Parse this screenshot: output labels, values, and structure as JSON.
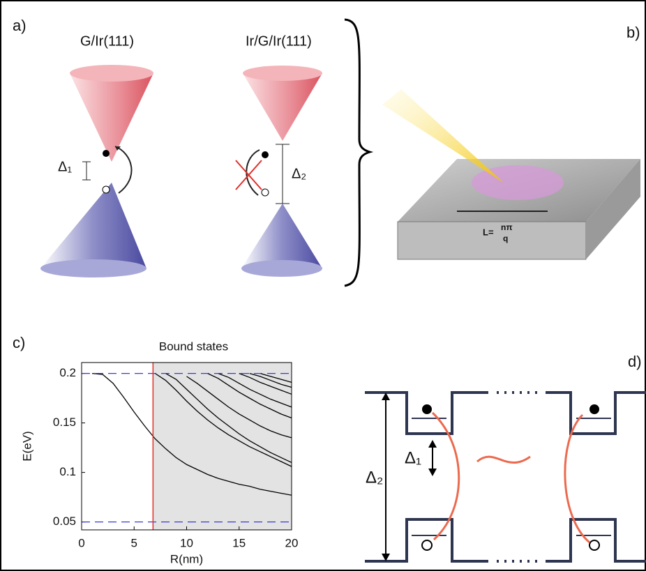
{
  "panels": {
    "a": {
      "label": "a)",
      "left_title": "G/Ir(111)",
      "right_title": "Ir/G/Ir(111)",
      "gap_small": "Δ₁",
      "gap_large": "Δ₂"
    },
    "b": {
      "label": "b)",
      "length_lhs": "L=",
      "length_num": "nπ",
      "length_den": "q"
    },
    "c": {
      "label": "c)"
    },
    "d": {
      "label": "d)",
      "gap_large": "Δ₂",
      "gap_small": "Δ₁"
    }
  },
  "chart_data": {
    "type": "line",
    "title": "Bound states",
    "x_label": "R(nm)",
    "y_label": "E(eV)",
    "x": [
      0,
      1,
      2,
      3,
      4,
      5,
      6,
      7,
      8,
      9,
      10,
      11,
      12,
      13,
      14,
      15,
      16,
      17,
      18,
      19,
      20
    ],
    "series": [
      {
        "color": "#000000",
        "values": [
          null,
          0.2,
          0.199,
          0.19,
          0.176,
          0.161,
          0.147,
          0.134,
          0.124,
          0.115,
          0.108,
          0.103,
          0.098,
          0.094,
          0.091,
          0.088,
          0.086,
          0.083,
          0.081,
          0.079,
          0.077
        ]
      },
      {
        "color": "#000000",
        "values": [
          null,
          null,
          null,
          null,
          null,
          null,
          null,
          0.2,
          0.193,
          0.183,
          0.172,
          0.162,
          0.153,
          0.145,
          0.138,
          0.132,
          0.126,
          0.121,
          0.116,
          0.111,
          0.106
        ]
      },
      {
        "color": "#000000",
        "values": [
          null,
          null,
          null,
          null,
          null,
          null,
          null,
          null,
          0.2,
          0.194,
          0.184,
          0.174,
          0.164,
          0.155,
          0.147,
          0.139,
          0.132,
          0.126,
          0.12,
          0.115,
          0.11
        ]
      },
      {
        "color": "#000000",
        "values": [
          null,
          null,
          null,
          null,
          null,
          null,
          null,
          null,
          null,
          null,
          0.197,
          0.19,
          0.182,
          0.174,
          0.166,
          0.159,
          0.153,
          0.147,
          0.142,
          0.138,
          0.135
        ]
      },
      {
        "color": "#000000",
        "values": [
          null,
          null,
          null,
          null,
          null,
          null,
          null,
          null,
          null,
          null,
          null,
          null,
          0.2,
          0.195,
          0.188,
          0.181,
          0.175,
          0.169,
          0.164,
          0.159,
          0.155
        ]
      },
      {
        "color": "#000000",
        "values": [
          null,
          null,
          null,
          null,
          null,
          null,
          null,
          null,
          null,
          null,
          null,
          null,
          null,
          0.2,
          0.196,
          0.19,
          0.184,
          0.179,
          0.174,
          0.17,
          0.166
        ]
      },
      {
        "color": "#000000",
        "values": [
          null,
          null,
          null,
          null,
          null,
          null,
          null,
          null,
          null,
          null,
          null,
          null,
          null,
          null,
          null,
          0.2,
          0.196,
          0.191,
          0.187,
          0.183,
          0.179
        ]
      },
      {
        "color": "#000000",
        "values": [
          null,
          null,
          null,
          null,
          null,
          null,
          null,
          null,
          null,
          null,
          null,
          null,
          null,
          null,
          null,
          null,
          0.2,
          0.197,
          0.193,
          0.189,
          0.186
        ]
      },
      {
        "color": "#000000",
        "values": [
          null,
          null,
          null,
          null,
          null,
          null,
          null,
          null,
          null,
          null,
          null,
          null,
          null,
          null,
          null,
          null,
          null,
          0.2,
          0.197,
          0.194,
          0.191
        ]
      }
    ],
    "xlim": [
      0,
      20
    ],
    "xticks": [
      0,
      5,
      10,
      15,
      20
    ],
    "ylim": [
      0.042,
      0.211
    ],
    "yticks": [
      0.05,
      0.1,
      0.15,
      0.2
    ],
    "vline": 6.8,
    "vline_color": "#e0302a",
    "shade_color": "#e3e3e3",
    "hlines": [
      0.2,
      0.05
    ],
    "hline_color": "#3a3ad0"
  }
}
